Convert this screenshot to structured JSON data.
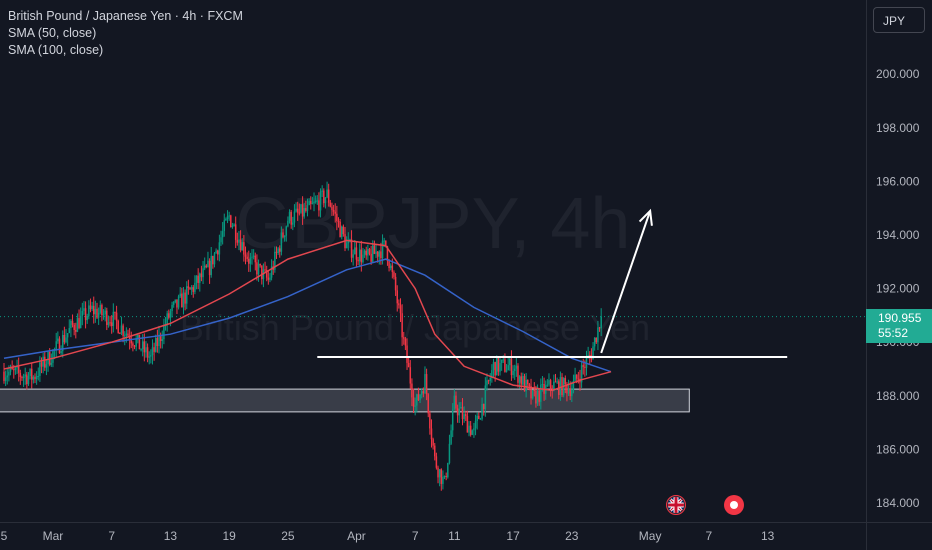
{
  "legend": {
    "title": "British Pound / Japanese Yen · 4h · FXCM",
    "sma50": "SMA (50, close)",
    "sma100": "SMA (100, close)"
  },
  "watermark": {
    "symbol": "GBPJPY, 4h",
    "name": "British Pound / Japanese Yen"
  },
  "currency_button": "JPY",
  "price_tag": {
    "price": "190.955",
    "countdown": "55:52"
  },
  "events": {
    "flag_icon": "uk-flag-icon",
    "record_icon": "economic-event-icon"
  },
  "colors": {
    "background": "#131722",
    "up": "#089981",
    "down": "#f23645",
    "sma50": "#e2474f",
    "sma100": "#3563c9",
    "text": "#b2b5be",
    "price_tag": "#22ab94"
  },
  "chart_data": {
    "type": "candlestick",
    "title": "British Pound / Japanese Yen · 4h · FXCM",
    "ylim": [
      183.3,
      202.3
    ],
    "y_ticks": [
      184,
      186,
      188,
      190,
      192,
      194,
      196,
      198,
      200
    ],
    "y_tick_labels": [
      "184.000",
      "186.000",
      "188.000",
      "190.000",
      "192.000",
      "194.000",
      "196.000",
      "198.000",
      "200.000"
    ],
    "x_ticks": [
      {
        "label": "5",
        "date": "2024-02-25"
      },
      {
        "label": "Mar",
        "date": "2024-03-01"
      },
      {
        "label": "7",
        "date": "2024-03-07"
      },
      {
        "label": "13",
        "date": "2024-03-13"
      },
      {
        "label": "19",
        "date": "2024-03-19"
      },
      {
        "label": "25",
        "date": "2024-03-25"
      },
      {
        "label": "Apr",
        "date": "2024-04-01"
      },
      {
        "label": "7",
        "date": "2024-04-07"
      },
      {
        "label": "11",
        "date": "2024-04-11"
      },
      {
        "label": "17",
        "date": "2024-04-17"
      },
      {
        "label": "23",
        "date": "2024-04-23"
      },
      {
        "label": "May",
        "date": "2024-05-01"
      },
      {
        "label": "7",
        "date": "2024-05-07"
      },
      {
        "label": "13",
        "date": "2024-05-13"
      }
    ],
    "last_price": 190.955,
    "close_path": [
      [
        "2024-02-25",
        188.9
      ],
      [
        "2024-02-28",
        188.7
      ],
      [
        "2024-03-01",
        189.6
      ],
      [
        "2024-03-03",
        190.6
      ],
      [
        "2024-03-05",
        191.2
      ],
      [
        "2024-03-07",
        190.9
      ],
      [
        "2024-03-09",
        190.2
      ],
      [
        "2024-03-11",
        189.4
      ],
      [
        "2024-03-13",
        191.1
      ],
      [
        "2024-03-15",
        191.9
      ],
      [
        "2024-03-17",
        192.8
      ],
      [
        "2024-03-19",
        194.7
      ],
      [
        "2024-03-21",
        193.1
      ],
      [
        "2024-03-23",
        192.3
      ],
      [
        "2024-03-25",
        194.6
      ],
      [
        "2024-03-27",
        194.9
      ],
      [
        "2024-03-29",
        195.5
      ],
      [
        "2024-03-31",
        193.6
      ],
      [
        "2024-04-02",
        193.1
      ],
      [
        "2024-04-04",
        193.6
      ],
      [
        "2024-04-05",
        191.9
      ],
      [
        "2024-04-06",
        189.6
      ],
      [
        "2024-04-07",
        187.6
      ],
      [
        "2024-04-08",
        188.6
      ],
      [
        "2024-04-09",
        185.6
      ],
      [
        "2024-04-10",
        184.7
      ],
      [
        "2024-04-11",
        187.7
      ],
      [
        "2024-04-13",
        186.6
      ],
      [
        "2024-04-15",
        189.1
      ],
      [
        "2024-04-17",
        189.1
      ],
      [
        "2024-04-19",
        187.9
      ],
      [
        "2024-04-21",
        188.4
      ],
      [
        "2024-04-23",
        188.3
      ],
      [
        "2024-04-25",
        189.6
      ],
      [
        "2024-04-26",
        190.955
      ]
    ],
    "sma50_path": [
      [
        "2024-02-25",
        189.0
      ],
      [
        "2024-03-01",
        189.4
      ],
      [
        "2024-03-07",
        190.0
      ],
      [
        "2024-03-13",
        190.7
      ],
      [
        "2024-03-19",
        191.8
      ],
      [
        "2024-03-25",
        193.1
      ],
      [
        "2024-03-31",
        193.8
      ],
      [
        "2024-04-04",
        193.6
      ],
      [
        "2024-04-07",
        192.0
      ],
      [
        "2024-04-09",
        190.3
      ],
      [
        "2024-04-12",
        189.1
      ],
      [
        "2024-04-17",
        188.4
      ],
      [
        "2024-04-21",
        188.2
      ],
      [
        "2024-04-24",
        188.6
      ],
      [
        "2024-04-27",
        188.9
      ]
    ],
    "sma100_path": [
      [
        "2024-02-25",
        189.4
      ],
      [
        "2024-03-01",
        189.7
      ],
      [
        "2024-03-07",
        190.0
      ],
      [
        "2024-03-13",
        190.3
      ],
      [
        "2024-03-19",
        190.9
      ],
      [
        "2024-03-25",
        191.7
      ],
      [
        "2024-03-31",
        192.7
      ],
      [
        "2024-04-04",
        193.1
      ],
      [
        "2024-04-08",
        192.5
      ],
      [
        "2024-04-13",
        191.3
      ],
      [
        "2024-04-18",
        190.4
      ],
      [
        "2024-04-23",
        189.4
      ],
      [
        "2024-04-27",
        188.9
      ]
    ],
    "annotations": {
      "support_zone": {
        "from_date": "2024-02-24",
        "to_date": "2024-05-05",
        "low": 187.4,
        "high": 188.25
      },
      "resistance_line": {
        "from_date": "2024-03-28",
        "to_date": "2024-05-15",
        "price": 189.45
      },
      "arrow": {
        "from_date": "2024-04-26",
        "from_price": 189.6,
        "to_date": "2024-05-01",
        "to_price": 194.9
      }
    }
  }
}
